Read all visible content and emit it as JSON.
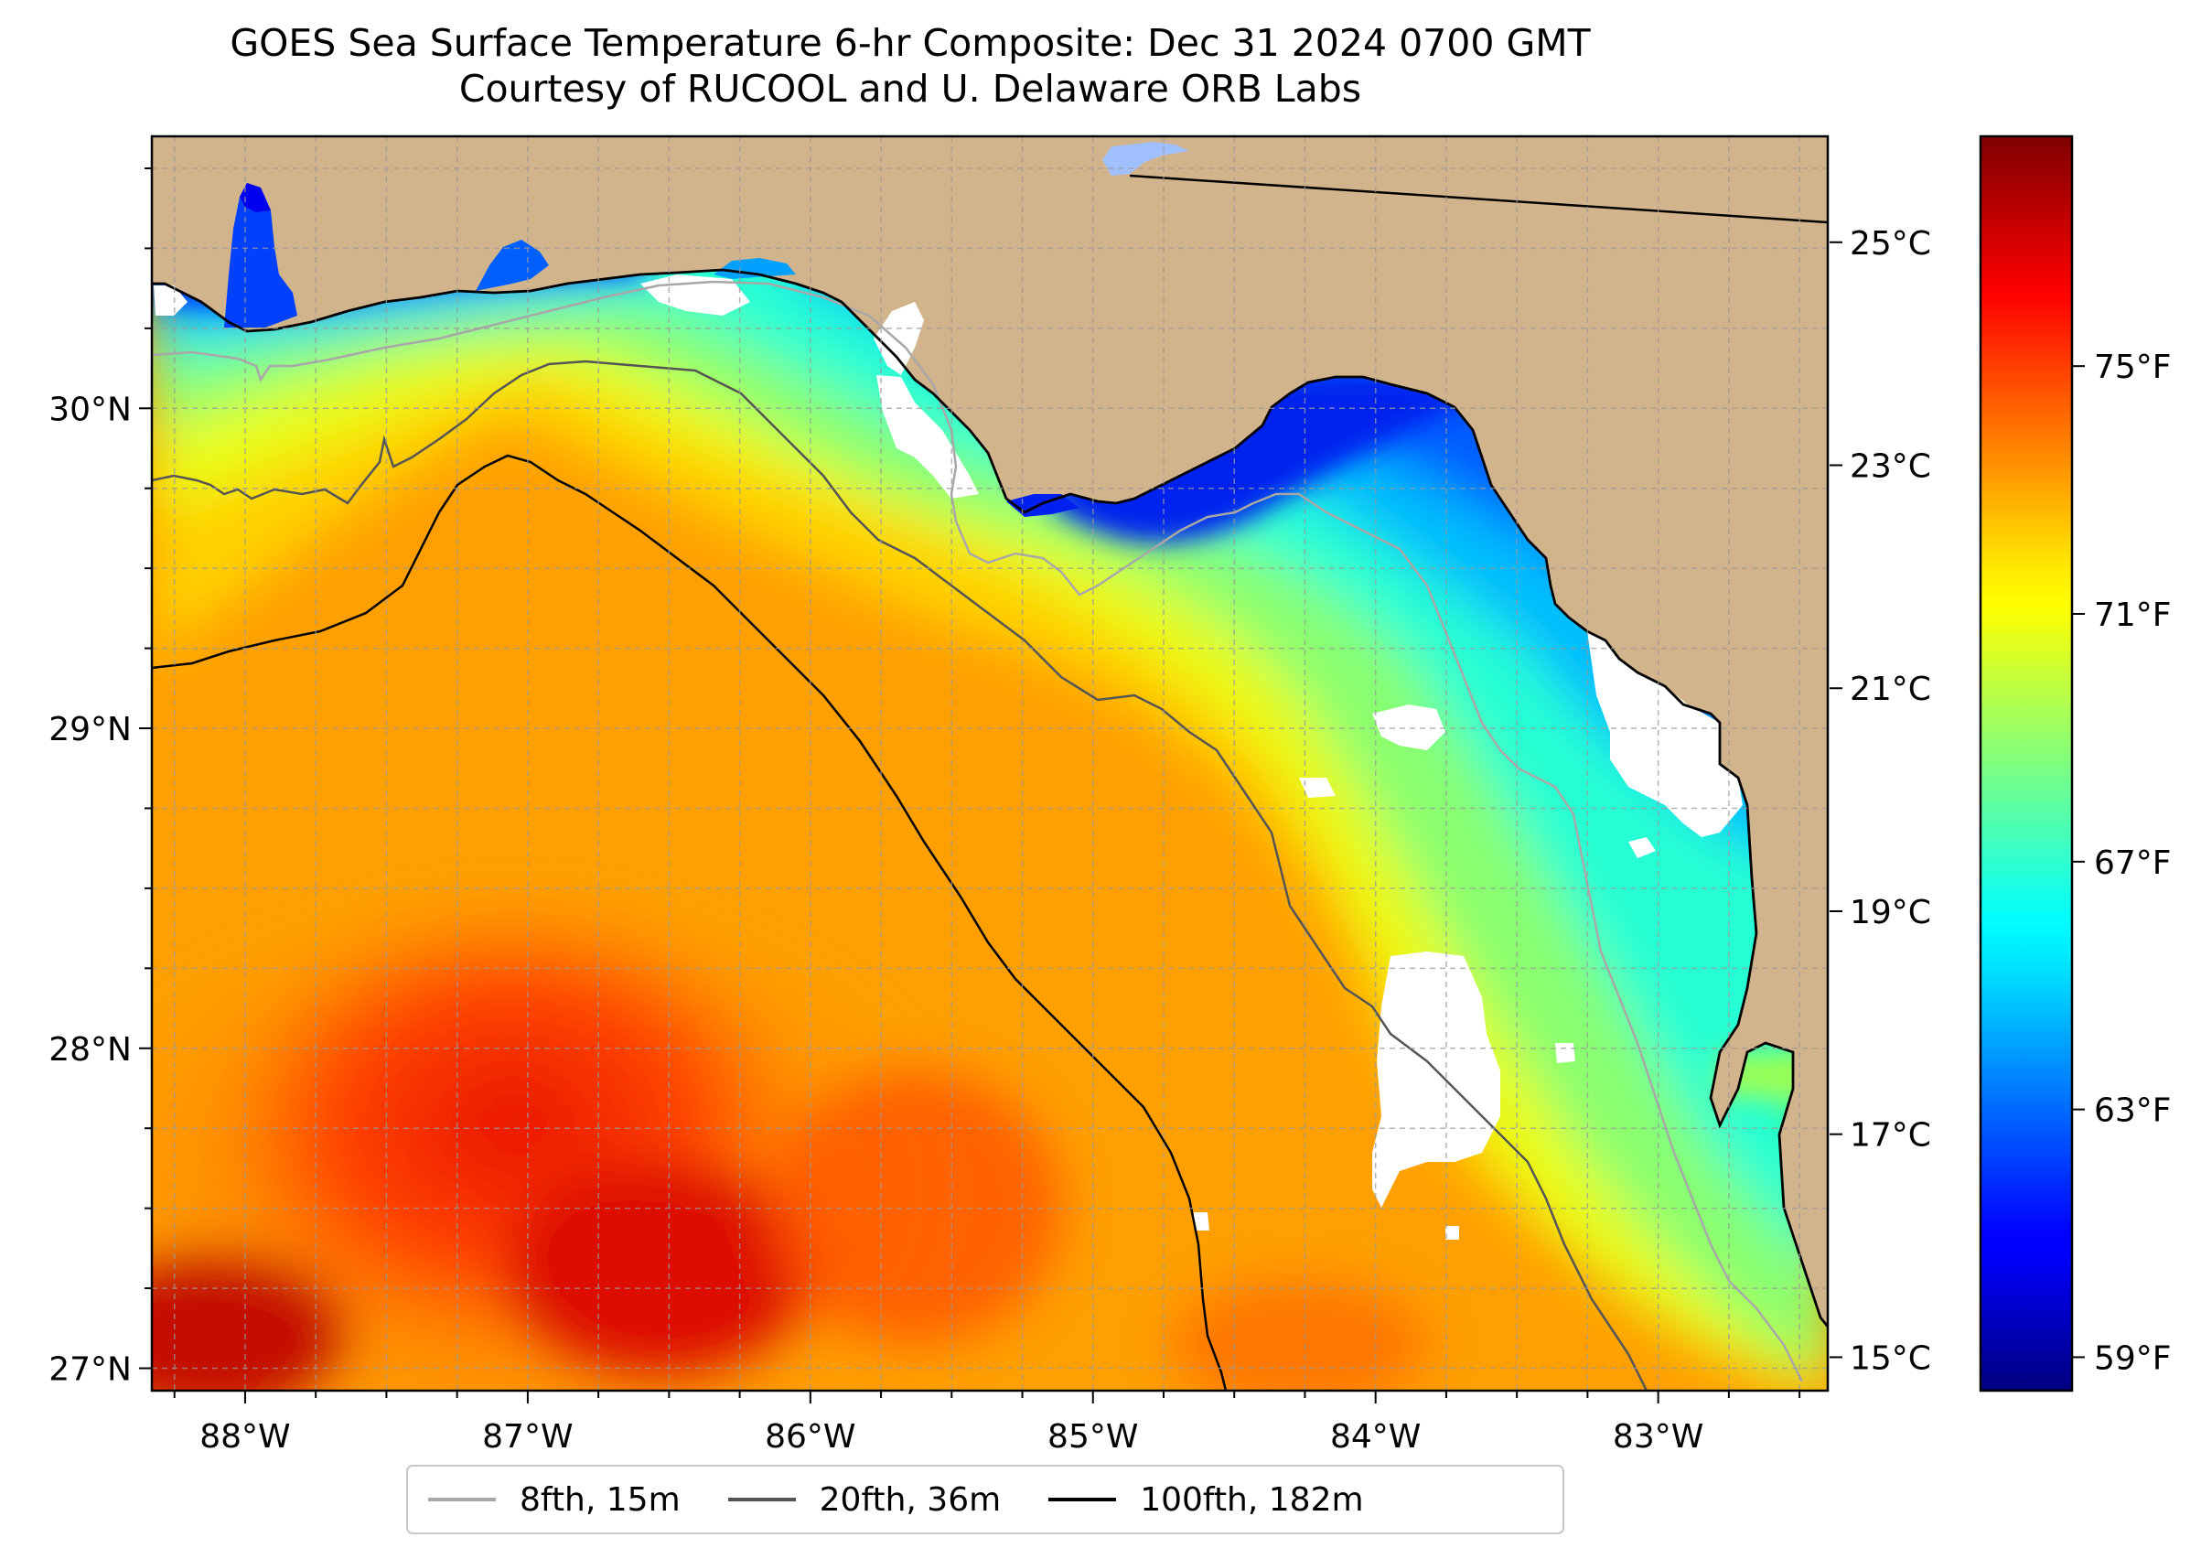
{
  "title": "GOES Sea Surface Temperature 6-hr Composite: Dec 31 2024 0700 GMT",
  "subtitle": "Courtesy of RUCOOL and U. Delaware ORB Labs",
  "map": {
    "extent": {
      "lon_min": -88.33,
      "lon_max": -82.4,
      "lat_min": 26.93,
      "lat_max": 30.85
    },
    "lon_ticks": [
      {
        "value": -88,
        "label": "88°W"
      },
      {
        "value": -87,
        "label": "87°W"
      },
      {
        "value": -86,
        "label": "86°W"
      },
      {
        "value": -85,
        "label": "85°W"
      },
      {
        "value": -84,
        "label": "84°W"
      },
      {
        "value": -83,
        "label": "83°W"
      }
    ],
    "lat_ticks": [
      {
        "value": 30,
        "label": "30°N"
      },
      {
        "value": 29,
        "label": "29°N"
      },
      {
        "value": 28,
        "label": "28°N"
      },
      {
        "value": 27,
        "label": "27°N"
      }
    ],
    "land_color": "#d2b48c",
    "ocean_color": "#ff9a00",
    "nodata_color": "#ffffff",
    "grid": true
  },
  "colorbar": {
    "colormap": "jet",
    "celsius_ticks": [
      "25°C",
      "23°C",
      "21°C",
      "19°C",
      "17°C",
      "15°C"
    ],
    "fahrenheit_ticks": [
      "75°F",
      "71°F",
      "67°F",
      "63°F",
      "59°F"
    ]
  },
  "legend": {
    "items": [
      {
        "label": "8fth, 15m",
        "color": "#a8a8a8"
      },
      {
        "label": "20fth, 36m",
        "color": "#555555"
      },
      {
        "label": "100fth, 182m",
        "color": "#000000"
      }
    ]
  }
}
